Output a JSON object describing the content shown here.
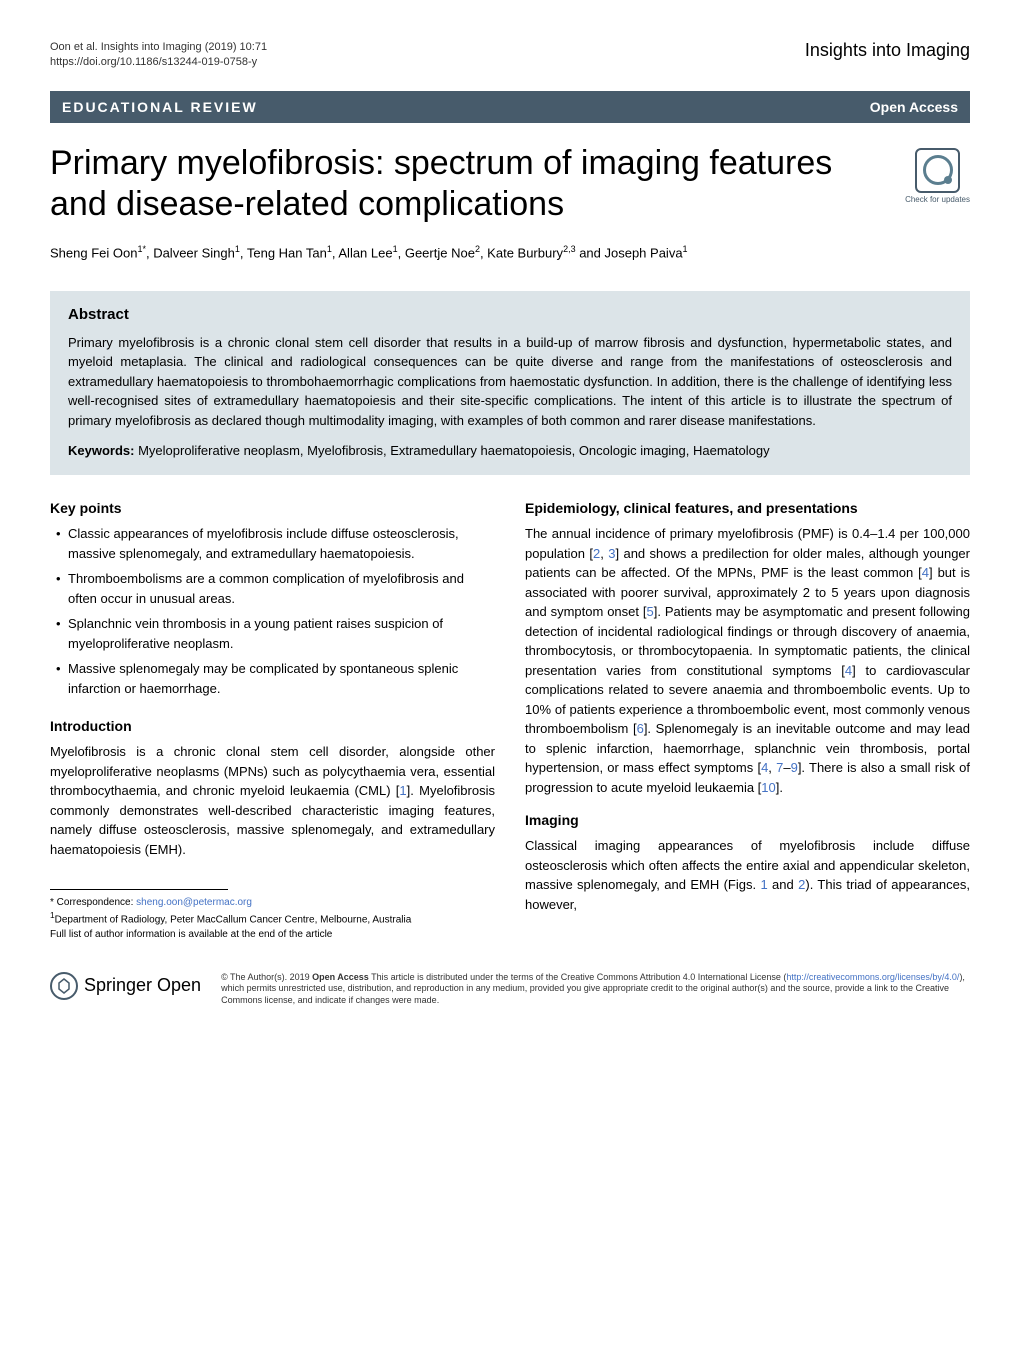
{
  "header": {
    "citation_line1": "Oon et al. Insights into Imaging          (2019) 10:71",
    "citation_line2": "https://doi.org/10.1186/s13244-019-0758-y",
    "journal_name": "Insights into Imaging"
  },
  "category": {
    "label": "EDUCATIONAL REVIEW",
    "open_access": "Open Access"
  },
  "title": "Primary myelofibrosis: spectrum of imaging features and disease-related complications",
  "check_updates_label": "Check for updates",
  "authors_html": "Sheng Fei Oon<sup>1*</sup>, Dalveer Singh<sup>1</sup>, Teng Han Tan<sup>1</sup>, Allan Lee<sup>1</sup>, Geertje Noe<sup>2</sup>, Kate Burbury<sup>2,3</sup> and Joseph Paiva<sup>1</sup>",
  "abstract": {
    "heading": "Abstract",
    "text": "Primary myelofibrosis is a chronic clonal stem cell disorder that results in a build-up of marrow fibrosis and dysfunction, hypermetabolic states, and myeloid metaplasia. The clinical and radiological consequences can be quite diverse and range from the manifestations of osteosclerosis and extramedullary haematopoiesis to thrombohaemorrhagic complications from haemostatic dysfunction. In addition, there is the challenge of identifying less well-recognised sites of extramedullary haematopoiesis and their site-specific complications. The intent of this article is to illustrate the spectrum of primary myelofibrosis as declared though multimodality imaging, with examples of both common and rarer disease manifestations.",
    "keywords_label": "Keywords:",
    "keywords_text": " Myeloproliferative neoplasm, Myelofibrosis, Extramedullary haematopoiesis, Oncologic imaging, Haematology"
  },
  "sections": {
    "key_points": {
      "heading": "Key points",
      "items": [
        "Classic appearances of myelofibrosis include diffuse osteosclerosis, massive splenomegaly, and extramedullary haematopoiesis.",
        "Thromboembolisms are a common complication of myelofibrosis and often occur in unusual areas.",
        "Splanchnic vein thrombosis in a young patient raises suspicion of myeloproliferative neoplasm.",
        "Massive splenomegaly may be complicated by spontaneous splenic infarction or haemorrhage."
      ]
    },
    "introduction": {
      "heading": "Introduction",
      "text_html": "Myelofibrosis is a chronic clonal stem cell disorder, alongside other myeloproliferative neoplasms (MPNs) such as polycythaemia vera, essential thrombocythaemia, and chronic myeloid leukaemia (CML) [<span class='ref-link'>1</span>]. Myelofibrosis commonly demonstrates well-described characteristic imaging features, namely diffuse osteosclerosis, massive splenomegaly, and extramedullary haematopoiesis (EMH)."
    },
    "epidemiology": {
      "heading": "Epidemiology, clinical features, and presentations",
      "text_html": "The annual incidence of primary myelofibrosis (PMF) is 0.4–1.4 per 100,000 population [<span class='ref-link'>2</span>, <span class='ref-link'>3</span>] and shows a predilection for older males, although younger patients can be affected. Of the MPNs, PMF is the least common [<span class='ref-link'>4</span>] but is associated with poorer survival, approximately 2 to 5 years upon diagnosis and symptom onset [<span class='ref-link'>5</span>]. Patients may be asymptomatic and present following detection of incidental radiological findings or through discovery of anaemia, thrombocytosis, or thrombocytopaenia. In symptomatic patients, the clinical presentation varies from constitutional symptoms [<span class='ref-link'>4</span>] to cardiovascular complications related to severe anaemia and thromboembolic events. Up to 10% of patients experience a thromboembolic event, most commonly venous thromboembolism [<span class='ref-link'>6</span>]. Splenomegaly is an inevitable outcome and may lead to splenic infarction, haemorrhage, splanchnic vein thrombosis, portal hypertension, or mass effect symptoms [<span class='ref-link'>4</span>, <span class='ref-link'>7</span>–<span class='ref-link'>9</span>]. There is also a small risk of progression to acute myeloid leukaemia [<span class='ref-link'>10</span>]."
    },
    "imaging": {
      "heading": "Imaging",
      "text_html": "Classical imaging appearances of myelofibrosis include diffuse osteosclerosis which often affects the entire axial and appendicular skeleton, massive splenomegaly, and EMH (Figs. <span class='ref-link'>1</span> and <span class='ref-link'>2</span>). This triad of appearances, however,"
    }
  },
  "footer": {
    "correspondence_label": "* Correspondence: ",
    "correspondence_email": "sheng.oon@petermac.org",
    "affiliation_line": "<sup>1</sup>Department of Radiology, Peter MacCallum Cancer Centre, Melbourne, Australia",
    "affiliation_note": "Full list of author information is available at the end of the article",
    "springer_label": "Springer Open",
    "license_text_html": "© The Author(s). 2019 <b>Open Access</b> This article is distributed under the terms of the Creative Commons Attribution 4.0 International License (<span class='license-link'>http://creativecommons.org/licenses/by/4.0/</span>), which permits unrestricted use, distribution, and reproduction in any medium, provided you give appropriate credit to the original author(s) and the source, provide a link to the Creative Commons license, and indicate if changes were made."
  },
  "colors": {
    "header_band": "#475b6b",
    "abstract_bg": "#dce4e8",
    "link_color": "#4472c4",
    "text_color": "#000000",
    "background": "#ffffff"
  },
  "typography": {
    "title_fontsize": 34,
    "body_fontsize": 13,
    "section_heading_fontsize": 14,
    "abstract_heading_fontsize": 15,
    "footer_fontsize": 10,
    "license_fontsize": 9
  }
}
